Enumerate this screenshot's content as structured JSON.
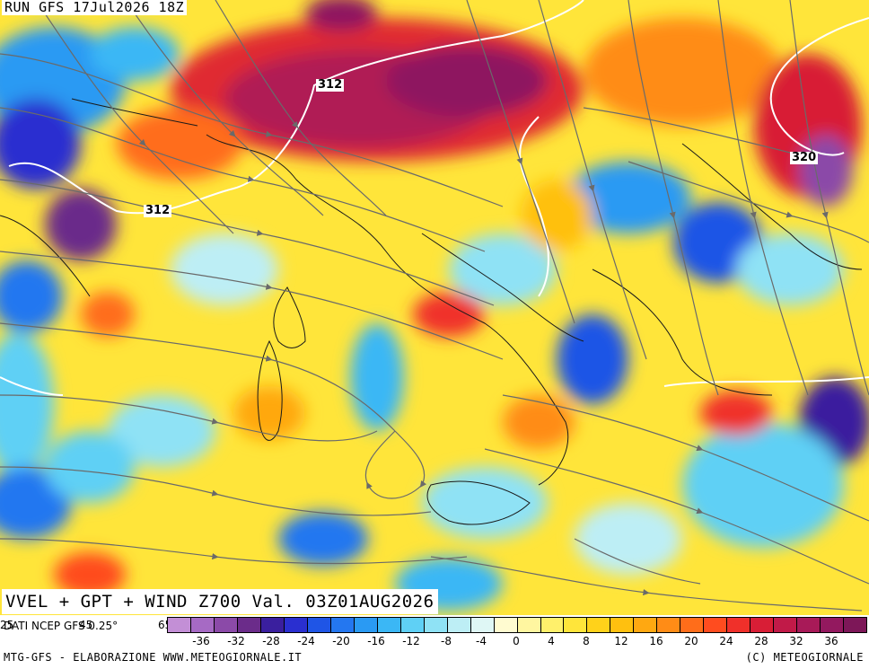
{
  "header": {
    "run": "RUN GFS 17Jul2026 18Z"
  },
  "title": "VVEL + GPT + WIND Z700 Val. 03Z01AUG2026",
  "source": "DATI NCEP GFS 0.25°",
  "footer": {
    "left": "MTG-GFS - ELABORAZIONE WWW.METEOGIORNALE.IT",
    "right": "(C) METEOGIORNALE"
  },
  "contour_labels": [
    "312",
    "312",
    "320"
  ],
  "legend": {
    "colors": [
      "#c38fd6",
      "#a66ac4",
      "#8b4aa8",
      "#6b2c8a",
      "#3a1f9e",
      "#2a2fd0",
      "#1f55e6",
      "#2477f0",
      "#2a9af3",
      "#3bb7f5",
      "#5fd0f5",
      "#8fe2f5",
      "#bdeef5",
      "#dff7f5",
      "#fffbd0",
      "#fff6a0",
      "#fff06b",
      "#ffe53a",
      "#ffd21a",
      "#ffc00f",
      "#ffa811",
      "#ff8c16",
      "#ff6d1a",
      "#ff4c1f",
      "#f0302a",
      "#d81e36",
      "#c11a48",
      "#a81a58",
      "#93195f",
      "#7d1758"
    ],
    "ticks": [
      "-36",
      "-32",
      "-28",
      "-24",
      "-20",
      "-16",
      "-12",
      "-8",
      "-4",
      "0",
      "4",
      "8",
      "12",
      "16",
      "20",
      "24",
      "28",
      "32",
      "36"
    ]
  },
  "strip_labels": [
    "25",
    "45",
    "65"
  ]
}
